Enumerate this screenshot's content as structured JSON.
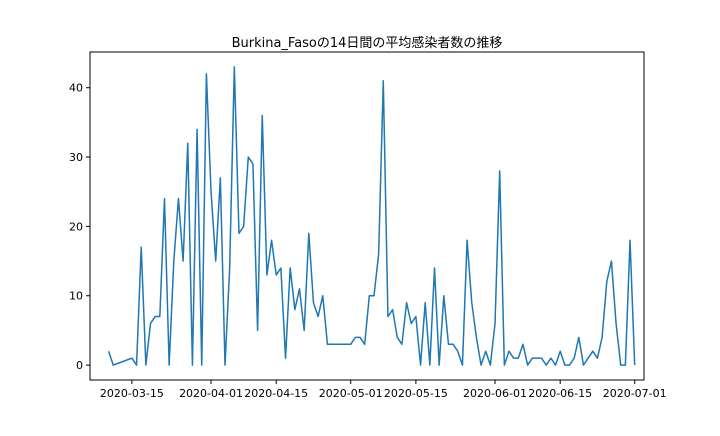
{
  "chart_data": {
    "type": "line",
    "title": "Burkina_Fasoの14日間の平均感染者数の推移",
    "xlabel": "",
    "ylabel": "",
    "x_start": "2020-03-10",
    "x_end": "2020-06-29",
    "xlim": [
      "2020-03-06",
      "2020-07-03"
    ],
    "ylim": [
      -2.15,
      45.15
    ],
    "x_ticks": [
      "2020-03-15",
      "2020-04-01",
      "2020-04-15",
      "2020-05-01",
      "2020-05-15",
      "2020-06-01",
      "2020-06-15",
      "2020-07-01"
    ],
    "y_ticks": [
      0,
      10,
      20,
      30,
      40
    ],
    "grid": false,
    "line_color": "#1f77b4",
    "series": [
      {
        "name": "",
        "values": [
          2,
          0,
          0.25,
          0.5,
          0.75,
          1,
          0,
          17,
          0,
          6,
          7,
          7,
          24,
          0,
          15,
          24,
          15,
          32,
          0,
          34,
          0,
          42,
          25,
          15,
          27,
          0,
          14,
          43,
          19,
          20,
          30,
          29,
          5,
          36,
          13,
          18,
          13,
          14,
          1,
          14,
          8,
          11,
          5,
          19,
          9,
          7,
          10,
          3,
          3,
          3,
          3,
          3,
          3,
          4,
          4,
          3,
          10,
          10,
          16,
          41,
          7,
          8,
          4,
          3,
          9,
          6,
          7,
          0,
          9,
          0,
          14,
          0,
          10,
          3,
          3,
          2,
          0,
          18,
          9,
          4,
          0,
          2,
          0,
          6,
          28,
          0,
          2,
          1,
          1,
          3,
          0,
          1,
          1,
          1,
          0,
          1,
          0,
          2,
          0,
          0,
          1,
          4,
          0,
          1,
          2,
          1,
          4,
          12,
          15,
          6,
          0,
          0,
          18,
          0
        ]
      }
    ]
  }
}
